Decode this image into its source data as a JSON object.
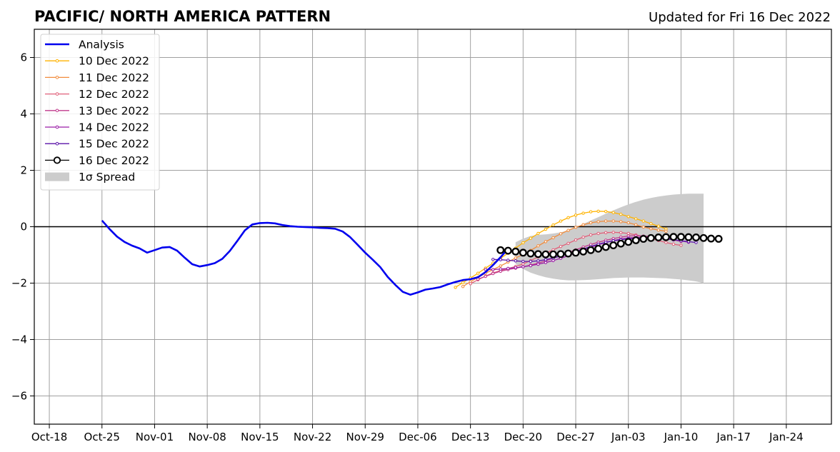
{
  "title": "PACIFIC/ NORTH AMERICA PATTERN",
  "updated": "Updated for Fri 16 Dec 2022",
  "chart_data": {
    "type": "line",
    "title": "PACIFIC/ NORTH AMERICA PATTERN",
    "subtitle": "Updated for Fri 16 Dec 2022",
    "xlabel": "",
    "ylabel": "",
    "xlim": [
      "2022-10-16",
      "2023-01-30"
    ],
    "ylim": [
      -7,
      7
    ],
    "grid": true,
    "legend_position": "top-left",
    "x_ticks": [
      "2022-10-18",
      "2022-10-25",
      "2022-11-01",
      "2022-11-08",
      "2022-11-15",
      "2022-11-22",
      "2022-11-29",
      "2022-12-06",
      "2022-12-13",
      "2022-12-20",
      "2022-12-27",
      "2023-01-03",
      "2023-01-10",
      "2023-01-17",
      "2023-01-24"
    ],
    "x_tick_labels": [
      "Oct-18",
      "Oct-25",
      "Nov-01",
      "Nov-08",
      "Nov-15",
      "Nov-22",
      "Nov-29",
      "Dec-06",
      "Dec-13",
      "Dec-20",
      "Dec-27",
      "Jan-03",
      "Jan-10",
      "Jan-17",
      "Jan-24"
    ],
    "y_ticks": [
      -6,
      -4,
      -2,
      0,
      2,
      4,
      6
    ],
    "y_tick_labels": [
      "−6",
      "−4",
      "−2",
      "0",
      "2",
      "4",
      "6"
    ],
    "analysis": {
      "name": "Analysis",
      "color": "#0000ee",
      "start_date": "2022-10-25",
      "values": [
        0.22,
        -0.08,
        -0.35,
        -0.54,
        -0.67,
        -0.77,
        -0.92,
        -0.83,
        -0.74,
        -0.72,
        -0.85,
        -1.1,
        -1.33,
        -1.41,
        -1.36,
        -1.29,
        -1.14,
        -0.86,
        -0.5,
        -0.13,
        0.08,
        0.13,
        0.14,
        0.12,
        0.06,
        0.02,
        0.0,
        -0.01,
        -0.02,
        -0.04,
        -0.05,
        -0.07,
        -0.17,
        -0.37,
        -0.64,
        -0.92,
        -1.17,
        -1.43,
        -1.78,
        -2.06,
        -2.31,
        -2.41,
        -2.33,
        -2.23,
        -2.19,
        -2.14,
        -2.04,
        -1.96,
        -1.89,
        -1.86,
        -1.79,
        -1.61,
        -1.36,
        -1.08,
        -0.78
      ]
    },
    "series": [
      {
        "name": "10 Dec 2022",
        "color": "#ffb300",
        "start_date": "2022-12-11",
        "values": [
          -2.15,
          -1.98,
          -1.82,
          -1.65,
          -1.47,
          -1.29,
          -1.12,
          -0.94,
          -0.76,
          -0.57,
          -0.41,
          -0.24,
          -0.09,
          0.06,
          0.2,
          0.32,
          0.41,
          0.48,
          0.53,
          0.55,
          0.54,
          0.5,
          0.44,
          0.36,
          0.28,
          0.2,
          0.11,
          0.02,
          -0.08
        ]
      },
      {
        "name": "11 Dec 2022",
        "color": "#f28c3c",
        "start_date": "2022-12-12",
        "values": [
          -2.12,
          -1.95,
          -1.8,
          -1.65,
          -1.52,
          -1.39,
          -1.25,
          -1.11,
          -0.98,
          -0.84,
          -0.68,
          -0.53,
          -0.39,
          -0.25,
          -0.13,
          -0.02,
          0.07,
          0.14,
          0.18,
          0.2,
          0.2,
          0.18,
          0.14,
          0.07,
          -0.01,
          -0.07,
          -0.12,
          -0.16
        ]
      },
      {
        "name": "12 Dec 2022",
        "color": "#e0607a",
        "start_date": "2022-12-13",
        "values": [
          -2.02,
          -1.88,
          -1.75,
          -1.64,
          -1.55,
          -1.48,
          -1.41,
          -1.32,
          -1.2,
          -1.07,
          -0.94,
          -0.82,
          -0.7,
          -0.59,
          -0.47,
          -0.37,
          -0.29,
          -0.24,
          -0.21,
          -0.2,
          -0.21,
          -0.24,
          -0.29,
          -0.35,
          -0.42,
          -0.49,
          -0.56,
          -0.62,
          -0.66
        ]
      },
      {
        "name": "13 Dec 2022",
        "color": "#c0398c",
        "start_date": "2022-12-14",
        "values": [
          -1.86,
          -1.76,
          -1.66,
          -1.58,
          -1.52,
          -1.47,
          -1.42,
          -1.36,
          -1.29,
          -1.21,
          -1.12,
          -1.02,
          -0.92,
          -0.82,
          -0.72,
          -0.63,
          -0.55,
          -0.48,
          -0.42,
          -0.37,
          -0.33,
          -0.32,
          -0.33,
          -0.35,
          -0.38,
          -0.42,
          -0.47,
          -0.52
        ]
      },
      {
        "name": "14 Dec 2022",
        "color": "#9a1ca6",
        "start_date": "2022-12-15",
        "values": [
          -1.52,
          -1.52,
          -1.5,
          -1.48,
          -1.45,
          -1.42,
          -1.38,
          -1.33,
          -1.27,
          -1.2,
          -1.12,
          -1.03,
          -0.93,
          -0.83,
          -0.73,
          -0.64,
          -0.56,
          -0.49,
          -0.44,
          -0.4,
          -0.38,
          -0.37,
          -0.37,
          -0.39,
          -0.42,
          -0.46,
          -0.5,
          -0.55
        ]
      },
      {
        "name": "15 Dec 2022",
        "color": "#5a12a8",
        "start_date": "2022-12-16",
        "values": [
          -1.16,
          -1.17,
          -1.19,
          -1.21,
          -1.23,
          -1.23,
          -1.21,
          -1.17,
          -1.11,
          -1.04,
          -0.96,
          -0.87,
          -0.79,
          -0.7,
          -0.62,
          -0.55,
          -0.5,
          -0.46,
          -0.43,
          -0.41,
          -0.4,
          -0.4,
          -0.41,
          -0.43,
          -0.46,
          -0.5,
          -0.53,
          -0.56
        ]
      },
      {
        "name": "16 Dec 2022",
        "color": "#000000",
        "start_date": "2022-12-17",
        "hollow_markers": true,
        "values": [
          -0.83,
          -0.85,
          -0.88,
          -0.92,
          -0.95,
          -0.97,
          -0.98,
          -0.98,
          -0.97,
          -0.95,
          -0.92,
          -0.88,
          -0.83,
          -0.78,
          -0.72,
          -0.66,
          -0.6,
          -0.54,
          -0.48,
          -0.43,
          -0.4,
          -0.38,
          -0.37,
          -0.36,
          -0.36,
          -0.37,
          -0.38,
          -0.4,
          -0.42,
          -0.43
        ]
      }
    ],
    "spread": {
      "name": "1σ Spread",
      "color": "#cccccc",
      "start_date": "2022-12-19",
      "upper": [
        -0.55,
        -0.42,
        -0.33,
        -0.29,
        -0.27,
        -0.24,
        -0.2,
        -0.13,
        -0.02,
        0.1,
        0.22,
        0.34,
        0.46,
        0.58,
        0.69,
        0.79,
        0.88,
        0.96,
        1.02,
        1.07,
        1.11,
        1.14,
        1.16,
        1.17,
        1.17,
        1.17
      ],
      "lower": [
        -1.32,
        -1.5,
        -1.63,
        -1.72,
        -1.79,
        -1.84,
        -1.88,
        -1.9,
        -1.9,
        -1.89,
        -1.88,
        -1.86,
        -1.84,
        -1.82,
        -1.81,
        -1.8,
        -1.8,
        -1.8,
        -1.81,
        -1.82,
        -1.83,
        -1.85,
        -1.87,
        -1.9,
        -1.94,
        -2.0
      ]
    },
    "legend": [
      {
        "label": "Analysis",
        "style": "line",
        "color": "#0000ee"
      },
      {
        "label": "10 Dec 2022",
        "style": "marker-line",
        "color": "#ffb300"
      },
      {
        "label": "11 Dec 2022",
        "style": "marker-line",
        "color": "#f28c3c"
      },
      {
        "label": "12 Dec 2022",
        "style": "marker-line",
        "color": "#e0607a"
      },
      {
        "label": "13 Dec 2022",
        "style": "marker-line",
        "color": "#c0398c"
      },
      {
        "label": "14 Dec 2022",
        "style": "marker-line",
        "color": "#9a1ca6"
      },
      {
        "label": "15 Dec 2022",
        "style": "marker-line",
        "color": "#5a12a8"
      },
      {
        "label": "16 Dec 2022",
        "style": "hollow-marker-line",
        "color": "#000000"
      },
      {
        "label": "1σ Spread",
        "style": "patch",
        "color": "#cccccc"
      }
    ]
  }
}
